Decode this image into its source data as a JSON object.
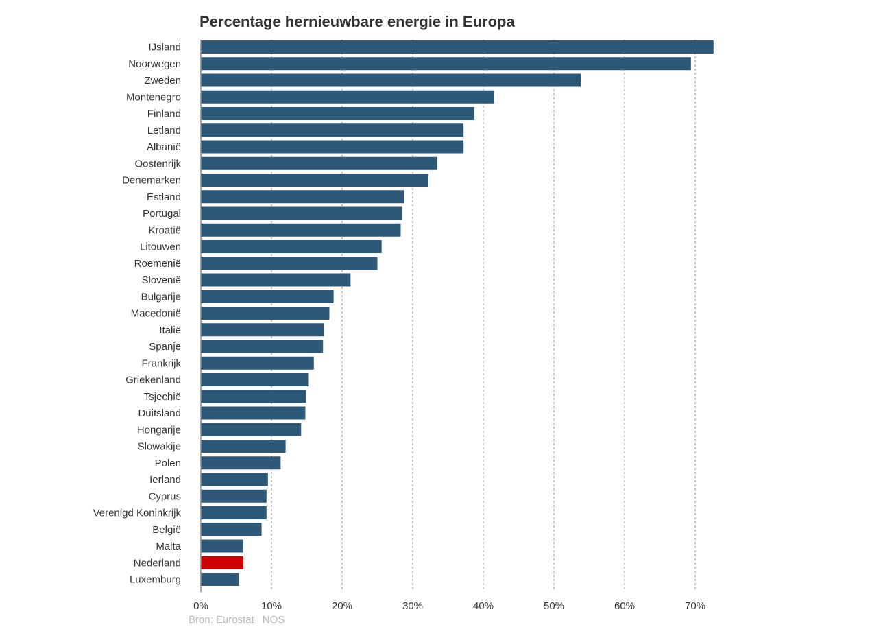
{
  "chart_data": {
    "type": "bar",
    "orientation": "horizontal",
    "title": "Percentage hernieuwbare energie in Europa",
    "xlabel": "",
    "ylabel": "",
    "xlim": [
      0,
      72.5
    ],
    "x_ticks": [
      "0%",
      "10%",
      "20%",
      "30%",
      "40%",
      "50%",
      "60%",
      "70%"
    ],
    "x_tick_values": [
      0,
      10,
      20,
      30,
      40,
      50,
      60,
      70
    ],
    "grid": "vertical dashed",
    "categories": [
      "IJsland",
      "Noorwegen",
      "Zweden",
      "Montenegro",
      "Finland",
      "Letland",
      "Albanië",
      "Oostenrijk",
      "Denemarken",
      "Estland",
      "Portugal",
      "Kroatië",
      "Litouwen",
      "Roemenië",
      "Slovenië",
      "Bulgarije",
      "Macedonië",
      "Italië",
      "Spanje",
      "Frankrijk",
      "Griekenland",
      "Tsjechië",
      "Duitsland",
      "Hongarije",
      "Slowakije",
      "Polen",
      "Ierland",
      "Cyprus",
      "Verenigd Koninkrijk",
      "België",
      "Malta",
      "Nederland",
      "Luxemburg"
    ],
    "values": [
      72.6,
      69.4,
      53.8,
      41.5,
      38.7,
      37.2,
      37.2,
      33.5,
      32.2,
      28.8,
      28.5,
      28.3,
      25.6,
      25.0,
      21.2,
      18.8,
      18.2,
      17.4,
      17.3,
      16.0,
      15.2,
      14.9,
      14.8,
      14.2,
      12.0,
      11.3,
      9.5,
      9.3,
      9.3,
      8.6,
      6.0,
      6.0,
      5.4
    ],
    "highlight": "Nederland",
    "colors": {
      "bar": "#2e5878",
      "highlight": "#cc0000",
      "grid": "#8a8a8a",
      "axis": "#8a8a8a",
      "label": "#333333",
      "source": "#b8b8b8"
    }
  },
  "source": {
    "label": "Bron:",
    "name": "Eurostat",
    "org": "NOS"
  }
}
